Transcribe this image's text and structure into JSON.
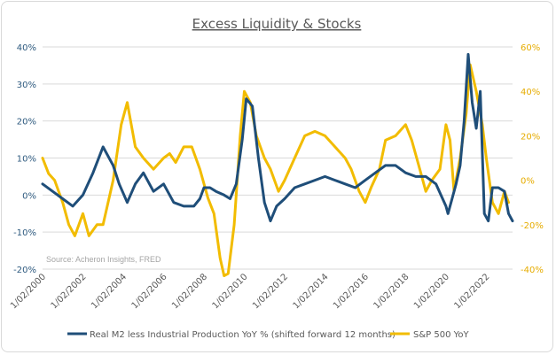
{
  "chart_data": {
    "type": "line",
    "title": "Excess Liquidity & Stocks",
    "source": "Source: Acheron Insights, FRED",
    "x_tick_labels": [
      "1/02/2000",
      "1/02/2002",
      "1/02/2004",
      "1/02/2006",
      "1/02/2008",
      "1/02/2010",
      "1/02/2012",
      "1/02/2014",
      "1/02/2016",
      "1/02/2018",
      "1/02/2020",
      "1/02/2022"
    ],
    "y_left": {
      "ticks": [
        "40%",
        "30%",
        "20%",
        "10%",
        "0%",
        "-10%",
        "-20%"
      ],
      "min": -20,
      "max": 40
    },
    "y_right": {
      "ticks": [
        "60%",
        "40%",
        "20%",
        "0%",
        "-20%",
        "-40%"
      ],
      "min": -40,
      "max": 60
    },
    "x_range": [
      2000.0,
      2023.3
    ],
    "series": [
      {
        "name": "Real M2 less Industrial Production YoY % (shifted forward 12 months)",
        "axis": "left",
        "color": "#1f4e79",
        "x": [
          2000.0,
          2000.5,
          2001.0,
          2001.5,
          2002.0,
          2002.5,
          2003.0,
          2003.5,
          2003.8,
          2004.2,
          2004.6,
          2005.0,
          2005.5,
          2006.0,
          2006.5,
          2007.0,
          2007.5,
          2007.8,
          2008.0,
          2008.3,
          2008.6,
          2009.0,
          2009.3,
          2009.6,
          2009.9,
          2010.1,
          2010.4,
          2010.7,
          2011.0,
          2011.3,
          2011.6,
          2012.0,
          2012.5,
          2013.0,
          2013.5,
          2014.0,
          2014.5,
          2015.0,
          2015.5,
          2016.0,
          2016.5,
          2017.0,
          2017.5,
          2018.0,
          2018.5,
          2019.0,
          2019.5,
          2020.0,
          2020.1,
          2020.3,
          2020.5,
          2020.7,
          2020.9,
          2021.1,
          2021.3,
          2021.5,
          2021.7,
          2021.9,
          2022.1,
          2022.3,
          2022.6,
          2022.9,
          2023.1,
          2023.3
        ],
        "values": [
          3,
          1,
          -1,
          -3,
          0,
          6,
          13,
          8,
          3,
          -2,
          3,
          6,
          1,
          3,
          -2,
          -3,
          -3,
          -1,
          2,
          2,
          1,
          0,
          -1,
          3,
          15,
          26,
          24,
          10,
          -2,
          -7,
          -3,
          -1,
          2,
          3,
          4,
          5,
          4,
          3,
          2,
          4,
          6,
          8,
          8,
          6,
          5,
          5,
          3,
          -3,
          -5,
          -1,
          3,
          8,
          20,
          38,
          25,
          18,
          28,
          -5,
          -7,
          2,
          2,
          1,
          -5,
          -7
        ]
      },
      {
        "name": "S&P 500 YoY",
        "axis": "right",
        "color": "#f2bc00",
        "x": [
          2000.0,
          2000.3,
          2000.6,
          2001.0,
          2001.3,
          2001.6,
          2002.0,
          2002.3,
          2002.7,
          2003.0,
          2003.5,
          2003.9,
          2004.2,
          2004.6,
          2005.0,
          2005.5,
          2006.0,
          2006.3,
          2006.6,
          2007.0,
          2007.4,
          2007.8,
          2008.2,
          2008.5,
          2008.8,
          2009.0,
          2009.2,
          2009.5,
          2009.8,
          2010.0,
          2010.3,
          2010.6,
          2011.0,
          2011.3,
          2011.7,
          2012.0,
          2012.5,
          2013.0,
          2013.5,
          2014.0,
          2014.5,
          2015.0,
          2015.3,
          2015.7,
          2016.0,
          2016.3,
          2016.7,
          2017.0,
          2017.5,
          2018.0,
          2018.3,
          2018.7,
          2019.0,
          2019.3,
          2019.7,
          2020.0,
          2020.2,
          2020.4,
          2020.7,
          2021.0,
          2021.2,
          2021.5,
          2021.8,
          2022.0,
          2022.3,
          2022.6,
          2022.9,
          2023.1
        ],
        "values": [
          10,
          3,
          0,
          -10,
          -20,
          -25,
          -15,
          -25,
          -20,
          -20,
          0,
          25,
          35,
          15,
          10,
          5,
          10,
          12,
          8,
          15,
          15,
          5,
          -8,
          -15,
          -35,
          -43,
          -42,
          -20,
          20,
          40,
          35,
          20,
          10,
          5,
          -5,
          0,
          10,
          20,
          22,
          20,
          15,
          10,
          5,
          -5,
          -10,
          -3,
          5,
          18,
          20,
          25,
          18,
          5,
          -5,
          0,
          5,
          25,
          18,
          -5,
          10,
          30,
          52,
          40,
          25,
          10,
          -10,
          -15,
          -5,
          -10
        ]
      }
    ]
  }
}
